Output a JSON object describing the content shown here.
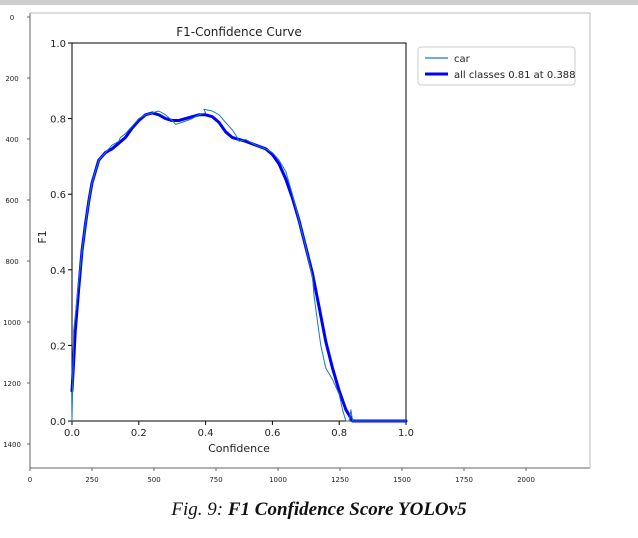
{
  "outer_axes": {
    "y_ticks": [
      "0",
      "200",
      "400",
      "600",
      "800",
      "1000",
      "1200",
      "1400"
    ],
    "x_ticks": [
      "0",
      "250",
      "500",
      "750",
      "1000",
      "1250",
      "1500",
      "1750",
      "2000"
    ]
  },
  "chart_data": {
    "type": "line",
    "title": "F1-Confidence Curve",
    "xlabel": "Confidence",
    "ylabel": "F1",
    "xlim": [
      0.0,
      1.0
    ],
    "ylim": [
      0.0,
      1.0
    ],
    "x_ticks": [
      "0.0",
      "0.2",
      "0.4",
      "0.6",
      "0.8",
      "1.0"
    ],
    "y_ticks": [
      "0.0",
      "0.2",
      "0.4",
      "0.6",
      "0.8",
      "1.0"
    ],
    "grid": false,
    "legend_position": "top-right",
    "series": [
      {
        "name": "car",
        "color": "#1f77b4",
        "line_width": "thin",
        "x": [
          0.0,
          0.005,
          0.01,
          0.02,
          0.03,
          0.04,
          0.05,
          0.06,
          0.07,
          0.08,
          0.09,
          0.1,
          0.12,
          0.14,
          0.145,
          0.16,
          0.18,
          0.2,
          0.22,
          0.24,
          0.26,
          0.28,
          0.3,
          0.31,
          0.33,
          0.36,
          0.38,
          0.4,
          0.395,
          0.42,
          0.44,
          0.46,
          0.48,
          0.495,
          0.5,
          0.52,
          0.55,
          0.58,
          0.6,
          0.62,
          0.64,
          0.66,
          0.68,
          0.7,
          0.72,
          0.725,
          0.74,
          0.745,
          0.76,
          0.78,
          0.8,
          0.81,
          0.82,
          0.83,
          0.835,
          0.84,
          0.85,
          0.9,
          1.0
        ],
        "y": [
          0.0,
          0.24,
          0.28,
          0.37,
          0.45,
          0.52,
          0.58,
          0.63,
          0.66,
          0.69,
          0.7,
          0.71,
          0.73,
          0.74,
          0.75,
          0.76,
          0.78,
          0.8,
          0.81,
          0.815,
          0.82,
          0.81,
          0.795,
          0.785,
          0.79,
          0.8,
          0.81,
          0.815,
          0.825,
          0.82,
          0.81,
          0.79,
          0.77,
          0.75,
          0.74,
          0.745,
          0.73,
          0.72,
          0.71,
          0.69,
          0.66,
          0.6,
          0.53,
          0.46,
          0.38,
          0.33,
          0.23,
          0.2,
          0.14,
          0.11,
          0.07,
          0.03,
          0.0,
          0.0,
          0.03,
          0.0,
          0.0,
          0.0,
          0.0
        ]
      },
      {
        "name": "all classes 0.81 at 0.388",
        "color": "#0000ff",
        "line_width": "thick",
        "x": [
          0.0,
          0.005,
          0.01,
          0.02,
          0.03,
          0.04,
          0.05,
          0.06,
          0.07,
          0.08,
          0.09,
          0.1,
          0.12,
          0.14,
          0.16,
          0.18,
          0.2,
          0.22,
          0.24,
          0.26,
          0.28,
          0.3,
          0.32,
          0.34,
          0.36,
          0.38,
          0.4,
          0.42,
          0.44,
          0.46,
          0.48,
          0.5,
          0.52,
          0.55,
          0.58,
          0.6,
          0.62,
          0.64,
          0.66,
          0.68,
          0.7,
          0.72,
          0.74,
          0.76,
          0.78,
          0.8,
          0.82,
          0.84,
          0.85,
          0.9,
          1.0
        ],
        "y": [
          0.08,
          0.16,
          0.24,
          0.35,
          0.45,
          0.52,
          0.58,
          0.63,
          0.66,
          0.69,
          0.7,
          0.71,
          0.72,
          0.735,
          0.75,
          0.775,
          0.795,
          0.81,
          0.815,
          0.81,
          0.8,
          0.795,
          0.795,
          0.8,
          0.805,
          0.81,
          0.81,
          0.805,
          0.79,
          0.765,
          0.75,
          0.745,
          0.74,
          0.73,
          0.72,
          0.705,
          0.68,
          0.64,
          0.59,
          0.53,
          0.46,
          0.39,
          0.3,
          0.21,
          0.14,
          0.08,
          0.03,
          0.0,
          0.0,
          0.0,
          0.0
        ]
      }
    ]
  },
  "caption": {
    "prefix": "Fig. 9:",
    "bold_text": "F1 Confidence Score YOLOv5"
  }
}
